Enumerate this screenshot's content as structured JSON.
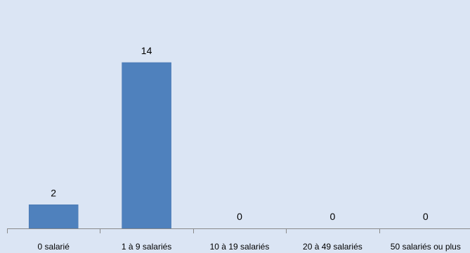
{
  "chart_data": {
    "type": "bar",
    "categories": [
      "0 salarié",
      "1 à 9 salariés",
      "10 à 19 salariés",
      "20 à 49 salariés",
      "50 salariés ou plus"
    ],
    "values": [
      2,
      14,
      0,
      0,
      0
    ],
    "data_labels": [
      "2",
      "14",
      "0",
      "0",
      "0"
    ],
    "title": "",
    "xlabel": "",
    "ylabel": "",
    "ylim": [
      0,
      14
    ],
    "grid": false,
    "legend": "none",
    "colors": {
      "background": "#dbe5f4",
      "bar": "#4f81bd",
      "axis": "#8a8a8a"
    }
  }
}
